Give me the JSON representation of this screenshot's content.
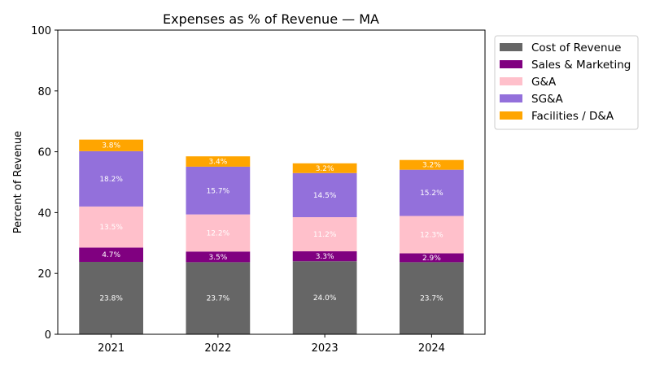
{
  "chart_data": {
    "type": "bar",
    "stacked": true,
    "title": "Expenses as % of Revenue — MA",
    "xlabel": "",
    "ylabel": "Percent of Revenue",
    "ylim": [
      0,
      100
    ],
    "yticks": [
      0,
      20,
      40,
      60,
      80,
      100
    ],
    "categories": [
      "2021",
      "2022",
      "2023",
      "2024"
    ],
    "legend_position": "outside-top-right",
    "series": [
      {
        "name": "Cost of Revenue",
        "color": "#666666",
        "values": [
          23.8,
          23.7,
          24.0,
          23.7
        ],
        "labels": [
          "23.8%",
          "23.7%",
          "24.0%",
          "23.7%"
        ]
      },
      {
        "name": "Sales & Marketing",
        "color": "#800080",
        "values": [
          4.7,
          3.5,
          3.3,
          2.9
        ],
        "labels": [
          "4.7%",
          "3.5%",
          "3.3%",
          "2.9%"
        ]
      },
      {
        "name": "G&A",
        "color": "#ffc0cb",
        "values": [
          13.5,
          12.2,
          11.2,
          12.3
        ],
        "labels": [
          "13.5%",
          "12.2%",
          "11.2%",
          "12.3%"
        ]
      },
      {
        "name": "SG&A",
        "color": "#9370db",
        "values": [
          18.2,
          15.7,
          14.5,
          15.2
        ],
        "labels": [
          "18.2%",
          "15.7%",
          "14.5%",
          "15.2%"
        ]
      },
      {
        "name": "Facilities / D&A",
        "color": "#ffa500",
        "values": [
          3.8,
          3.4,
          3.2,
          3.2
        ],
        "labels": [
          "3.8%",
          "3.4%",
          "3.2%",
          "3.2%"
        ]
      }
    ]
  }
}
